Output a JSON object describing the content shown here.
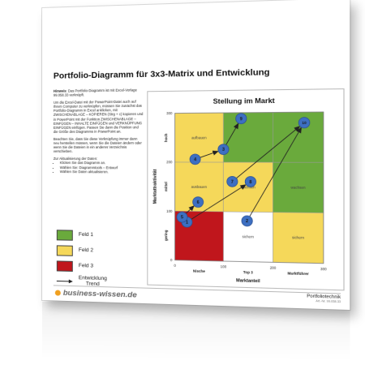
{
  "document": {
    "title": "Portfolio-Diagramm für 3x3-Matrix und Entwicklung",
    "hint_label": "Hinweis",
    "hint_text": ": Das Portfolio-Diagramm ist mit Excel-Vorlage 99.058.33 verknüpft.",
    "para1": "Um die Excel-Datei mit der PowerPoint-Datei auch auf Ihrem Computer zu verknüpfen, müssen Sie zunächst das Portfolio-Diagramm in Excel anklicken, mit ZWISCHENABLAGE – KOPIEREN (Strg + c) kopieren und in PowerPoint mit der Funktion ZWISCHENABLAGE – EINFÜGEN – INHALTE EINFÜGEN und VERKNÜPFUNG EINFÜGEN einfügen. Passen Sie dann die Position und die Größe des Diagramms in PowerPoint an.",
    "para2": "Beachten Sie, dass Sie diese Verknüpfung immer dann neu herstellen müssen, wenn Sie die Dateien ändern oder wenn Sie die Dateien in ein anderes Verzeichnis verschieben.",
    "update_title": "Zur Aktualisierung der Daten:",
    "update_steps": [
      "Klicken Sie das Diagramm an.",
      "Wählen Sie: Diagrammtools – Entwurf",
      "Wählen Sie Daten aktualisieren."
    ]
  },
  "legend": {
    "items": [
      {
        "label": "Feld 1",
        "color": "#6aaa3c"
      },
      {
        "label": "Feld 2",
        "color": "#f5d85a"
      },
      {
        "label": "Feld 3",
        "color": "#c0161c"
      }
    ],
    "trend_line1": "Entwicklung",
    "trend_line2": "Trend"
  },
  "footer": {
    "brand": "business-wissen.de",
    "right_title": "Portfoliotechnik",
    "right_sub": "Art.-Nr. 99.058.33"
  },
  "chart_data": {
    "type": "scatter",
    "title": "Stellung im Markt",
    "xlabel": "Marktanteil",
    "ylabel": "Marktattraktivität",
    "xlim": [
      0,
      300
    ],
    "ylim": [
      0,
      300
    ],
    "xticks": [
      0,
      100,
      200,
      300
    ],
    "yticks": [
      0,
      100,
      200,
      300
    ],
    "x_zone_labels": [
      "Nische",
      "Top 3",
      "Marktführer"
    ],
    "y_zone_labels": [
      "gering",
      "mittel",
      "hoch"
    ],
    "cells": [
      {
        "row": "hoch",
        "col": "Nische",
        "label": "aufbauen",
        "color": "#f5d85a"
      },
      {
        "row": "hoch",
        "col": "Top 3",
        "label": "",
        "color": "#6aaa3c"
      },
      {
        "row": "hoch",
        "col": "Marktführer",
        "label": "",
        "color": "#6aaa3c"
      },
      {
        "row": "mittel",
        "col": "Nische",
        "label": "ausbauen",
        "color": "#f5d85a"
      },
      {
        "row": "mittel",
        "col": "Top 3",
        "label": "wachsen",
        "color": "#f5d85a"
      },
      {
        "row": "mittel",
        "col": "Marktführer",
        "label": "wachsen",
        "color": "#6aaa3c"
      },
      {
        "row": "gering",
        "col": "Nische",
        "label": "",
        "color": "#c0161c"
      },
      {
        "row": "gering",
        "col": "Top 3",
        "label": "sichern",
        "color": "#ffffff"
      },
      {
        "row": "gering",
        "col": "Marktführer",
        "label": "sichern",
        "color": "#f5d85a"
      }
    ],
    "points": [
      {
        "id": "1",
        "x": 25,
        "y": 78
      },
      {
        "id": "2",
        "x": 148,
        "y": 82
      },
      {
        "id": "3",
        "x": 100,
        "y": 226
      },
      {
        "id": "4",
        "x": 42,
        "y": 206
      },
      {
        "id": "5",
        "x": 15,
        "y": 88
      },
      {
        "id": "6",
        "x": 48,
        "y": 119
      },
      {
        "id": "7",
        "x": 118,
        "y": 161
      },
      {
        "id": "8",
        "x": 155,
        "y": 161
      },
      {
        "id": "9",
        "x": 136,
        "y": 288
      },
      {
        "id": "10",
        "x": 262,
        "y": 279
      }
    ],
    "trends": [
      {
        "from": "1",
        "to": "8"
      },
      {
        "from": "5",
        "to": "6"
      },
      {
        "from": "4",
        "to": "3"
      },
      {
        "from": "3",
        "to": "9"
      },
      {
        "from": "7",
        "to": "10"
      },
      {
        "from": "2",
        "to": "10"
      }
    ]
  }
}
